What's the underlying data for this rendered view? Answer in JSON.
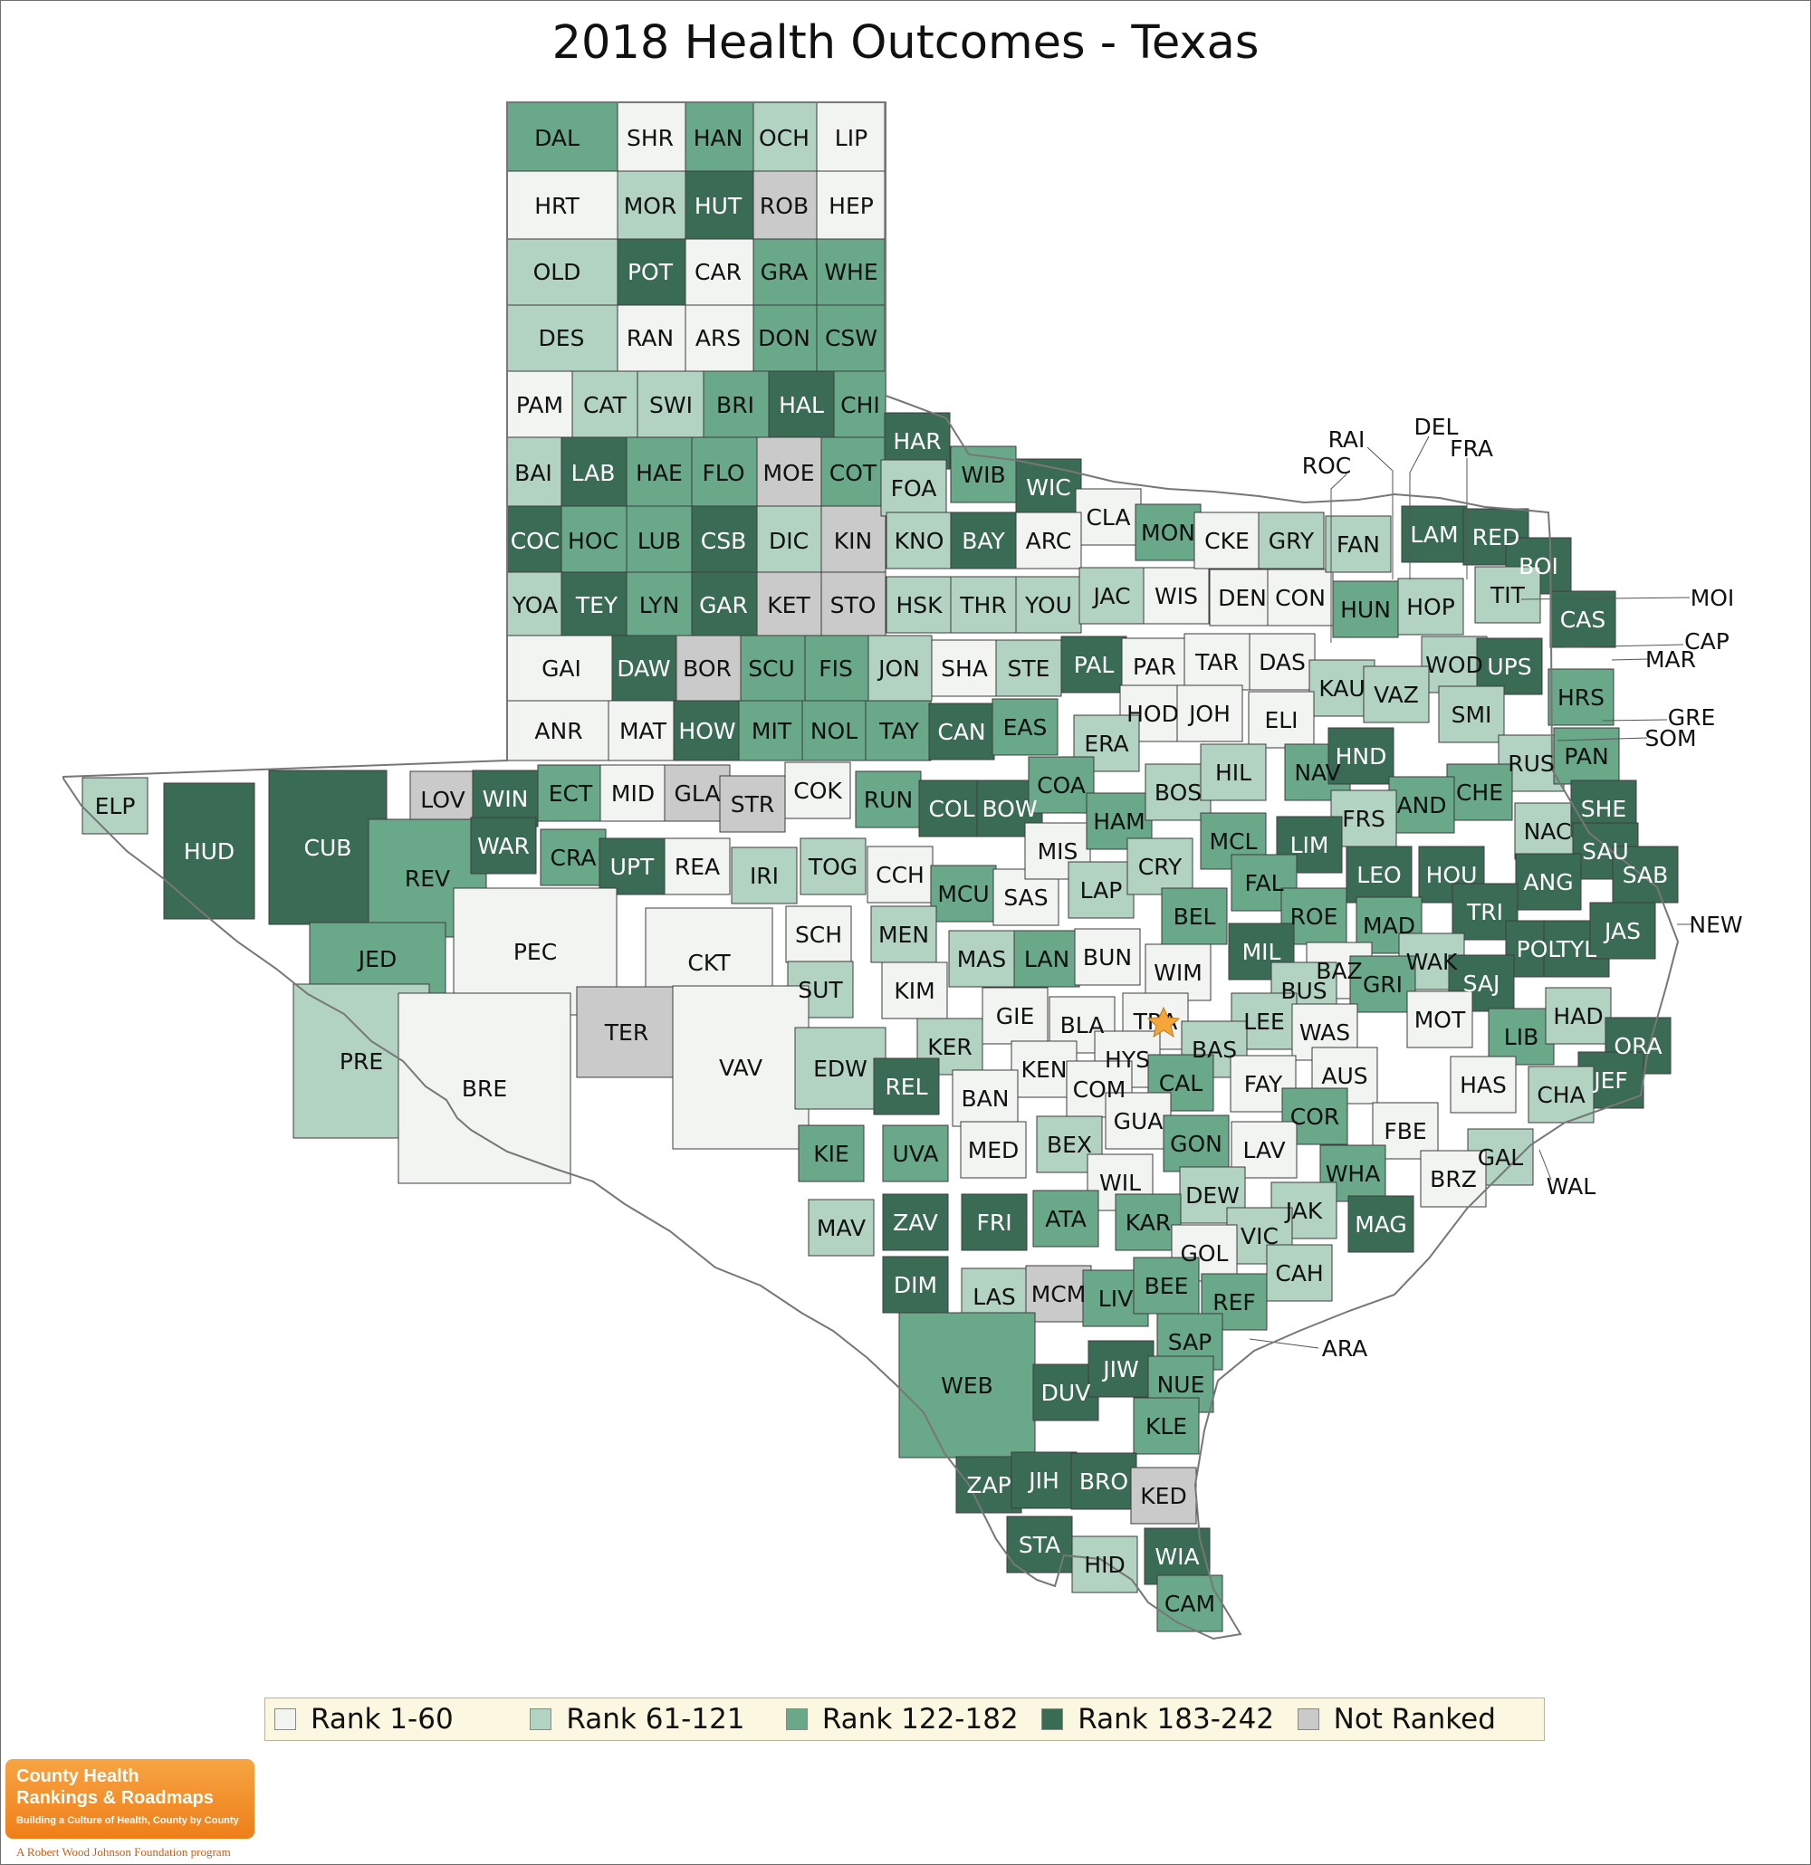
{
  "title": "2018 Health Outcomes - Texas",
  "colors": {
    "rank_1_60": "#f1f4f1",
    "rank_61_121": "#b2d3c1",
    "rank_122_182": "#6aa88a",
    "rank_183_242": "#3a6b55",
    "not_ranked": "#cacaca",
    "border": "#3d3d3d",
    "outline": "#777777",
    "capital_star": "#f4a63b"
  },
  "legend": [
    {
      "label": "Rank 1-60",
      "color": "#f1f4f1"
    },
    {
      "label": "Rank 61-121",
      "color": "#b2d3c1"
    },
    {
      "label": "Rank 122-182",
      "color": "#6aa88a"
    },
    {
      "label": "Rank 183-242",
      "color": "#3a6b55"
    },
    {
      "label": "Not Ranked",
      "color": "#cacaca"
    }
  ],
  "branding": {
    "line1": "County Health",
    "line2": "Rankings & Roadmaps",
    "tagline": "Building a Culture of Health, County by County",
    "foundation": "A Robert Wood Johnson Foundation program"
  },
  "capital": {
    "county": "TRA",
    "icon": "star-icon"
  },
  "counties": [
    {
      "code": "DAL",
      "tier": "r3"
    },
    {
      "code": "SHR",
      "tier": "r1"
    },
    {
      "code": "HAN",
      "tier": "r3"
    },
    {
      "code": "OCH",
      "tier": "r2"
    },
    {
      "code": "LIP",
      "tier": "r1"
    },
    {
      "code": "HRT",
      "tier": "r1"
    },
    {
      "code": "MOR",
      "tier": "r2"
    },
    {
      "code": "HUT",
      "tier": "r4"
    },
    {
      "code": "ROB",
      "tier": "nr"
    },
    {
      "code": "HEP",
      "tier": "r1"
    },
    {
      "code": "OLD",
      "tier": "r2"
    },
    {
      "code": "POT",
      "tier": "r4"
    },
    {
      "code": "CAR",
      "tier": "r1"
    },
    {
      "code": "GRA",
      "tier": "r3"
    },
    {
      "code": "WHE",
      "tier": "r3"
    },
    {
      "code": "DES",
      "tier": "r2"
    },
    {
      "code": "RAN",
      "tier": "r1"
    },
    {
      "code": "ARS",
      "tier": "r1"
    },
    {
      "code": "DON",
      "tier": "r3"
    },
    {
      "code": "CSW",
      "tier": "r3"
    },
    {
      "code": "PAM",
      "tier": "r1"
    },
    {
      "code": "CAT",
      "tier": "r2"
    },
    {
      "code": "SWI",
      "tier": "r2"
    },
    {
      "code": "BRI",
      "tier": "r3"
    },
    {
      "code": "HAL",
      "tier": "r4"
    },
    {
      "code": "CHI",
      "tier": "r3"
    },
    {
      "code": "BAI",
      "tier": "r2"
    },
    {
      "code": "LAB",
      "tier": "r4"
    },
    {
      "code": "HAE",
      "tier": "r3"
    },
    {
      "code": "FLO",
      "tier": "r3"
    },
    {
      "code": "MOE",
      "tier": "nr"
    },
    {
      "code": "COT",
      "tier": "r3"
    },
    {
      "code": "COC",
      "tier": "r4"
    },
    {
      "code": "HOC",
      "tier": "r3"
    },
    {
      "code": "LUB",
      "tier": "r3"
    },
    {
      "code": "CSB",
      "tier": "r4"
    },
    {
      "code": "DIC",
      "tier": "r2"
    },
    {
      "code": "KIN",
      "tier": "nr"
    },
    {
      "code": "YOA",
      "tier": "r2"
    },
    {
      "code": "TEY",
      "tier": "r4"
    },
    {
      "code": "LYN",
      "tier": "r3"
    },
    {
      "code": "GAR",
      "tier": "r4"
    },
    {
      "code": "KET",
      "tier": "nr"
    },
    {
      "code": "STO",
      "tier": "nr"
    },
    {
      "code": "GAI",
      "tier": "r1"
    },
    {
      "code": "DAW",
      "tier": "r4"
    },
    {
      "code": "BOR",
      "tier": "nr"
    },
    {
      "code": "SCU",
      "tier": "r3"
    },
    {
      "code": "FIS",
      "tier": "r3"
    },
    {
      "code": "JON",
      "tier": "r2"
    },
    {
      "code": "ANR",
      "tier": "r1"
    },
    {
      "code": "MAT",
      "tier": "r1"
    },
    {
      "code": "HOW",
      "tier": "r4"
    },
    {
      "code": "MIT",
      "tier": "r3"
    },
    {
      "code": "NOL",
      "tier": "r3"
    },
    {
      "code": "TAY",
      "tier": "r3"
    },
    {
      "code": "HAR",
      "tier": "r4"
    },
    {
      "code": "FOA",
      "tier": "r2"
    },
    {
      "code": "WIB",
      "tier": "r3"
    },
    {
      "code": "WIC",
      "tier": "r4"
    },
    {
      "code": "CLA",
      "tier": "r1"
    },
    {
      "code": "KNO",
      "tier": "r2"
    },
    {
      "code": "BAY",
      "tier": "r4"
    },
    {
      "code": "ARC",
      "tier": "r1"
    },
    {
      "code": "HSK",
      "tier": "r2"
    },
    {
      "code": "THR",
      "tier": "r2"
    },
    {
      "code": "YOU",
      "tier": "r2"
    },
    {
      "code": "SHA",
      "tier": "r1"
    },
    {
      "code": "STE",
      "tier": "r2"
    },
    {
      "code": "CAN",
      "tier": "r4"
    },
    {
      "code": "EAS",
      "tier": "r3"
    },
    {
      "code": "JAC",
      "tier": "r2"
    },
    {
      "code": "WIS",
      "tier": "r1"
    },
    {
      "code": "DEN",
      "tier": "r1"
    },
    {
      "code": "CON",
      "tier": "r1"
    },
    {
      "code": "PAL",
      "tier": "r4"
    },
    {
      "code": "PAR",
      "tier": "r1"
    },
    {
      "code": "TAR",
      "tier": "r1"
    },
    {
      "code": "DAS",
      "tier": "r1"
    },
    {
      "code": "MON",
      "tier": "r3"
    },
    {
      "code": "CKE",
      "tier": "r1"
    },
    {
      "code": "GRY",
      "tier": "r2"
    },
    {
      "code": "FAN",
      "tier": "r2"
    },
    {
      "code": "LAM",
      "tier": "r4"
    },
    {
      "code": "RED",
      "tier": "r4"
    },
    {
      "code": "BOI",
      "tier": "r4"
    },
    {
      "code": "CAS",
      "tier": "r4"
    },
    {
      "code": "HUN",
      "tier": "r3"
    },
    {
      "code": "HOP",
      "tier": "r2"
    },
    {
      "code": "TIT",
      "tier": "r2"
    },
    {
      "code": "WOD",
      "tier": "r2"
    },
    {
      "code": "UPS",
      "tier": "r4"
    },
    {
      "code": "KAU",
      "tier": "r2"
    },
    {
      "code": "VAZ",
      "tier": "r2"
    },
    {
      "code": "SMI",
      "tier": "r2"
    },
    {
      "code": "HRS",
      "tier": "r3"
    },
    {
      "code": "HOD",
      "tier": "r1"
    },
    {
      "code": "JOH",
      "tier": "r1"
    },
    {
      "code": "ELI",
      "tier": "r1"
    },
    {
      "code": "ERA",
      "tier": "r2"
    },
    {
      "code": "ELP",
      "tier": "r2"
    },
    {
      "code": "HUD",
      "tier": "r4"
    },
    {
      "code": "CUB",
      "tier": "r4"
    },
    {
      "code": "LOV",
      "tier": "nr"
    },
    {
      "code": "WIN",
      "tier": "r4"
    },
    {
      "code": "ECT",
      "tier": "r3"
    },
    {
      "code": "MID",
      "tier": "r1"
    },
    {
      "code": "GLA",
      "tier": "nr"
    },
    {
      "code": "STR",
      "tier": "nr"
    },
    {
      "code": "COK",
      "tier": "r1"
    },
    {
      "code": "RUN",
      "tier": "r3"
    },
    {
      "code": "COL",
      "tier": "r4"
    },
    {
      "code": "BOW",
      "tier": "r4"
    },
    {
      "code": "COA",
      "tier": "r3"
    },
    {
      "code": "REV",
      "tier": "r3"
    },
    {
      "code": "WAR",
      "tier": "r4"
    },
    {
      "code": "CRA",
      "tier": "r3"
    },
    {
      "code": "UPT",
      "tier": "r4"
    },
    {
      "code": "REA",
      "tier": "r1"
    },
    {
      "code": "IRI",
      "tier": "r2"
    },
    {
      "code": "TOG",
      "tier": "r2"
    },
    {
      "code": "CCH",
      "tier": "r1"
    },
    {
      "code": "MCU",
      "tier": "r3"
    },
    {
      "code": "SAS",
      "tier": "r1"
    },
    {
      "code": "MIS",
      "tier": "r1"
    },
    {
      "code": "HAM",
      "tier": "r3"
    },
    {
      "code": "BOS",
      "tier": "r2"
    },
    {
      "code": "HIL",
      "tier": "r2"
    },
    {
      "code": "NAV",
      "tier": "r3"
    },
    {
      "code": "HND",
      "tier": "r4"
    },
    {
      "code": "RUS",
      "tier": "r2"
    },
    {
      "code": "PAN",
      "tier": "r3"
    },
    {
      "code": "CHE",
      "tier": "r3"
    },
    {
      "code": "AND",
      "tier": "r3"
    },
    {
      "code": "FRS",
      "tier": "r2"
    },
    {
      "code": "NAC",
      "tier": "r2"
    },
    {
      "code": "SHE",
      "tier": "r4"
    },
    {
      "code": "SAU",
      "tier": "r4"
    },
    {
      "code": "SAB",
      "tier": "r4"
    },
    {
      "code": "JED",
      "tier": "r3"
    },
    {
      "code": "PEC",
      "tier": "r1"
    },
    {
      "code": "CKT",
      "tier": "r1"
    },
    {
      "code": "SCH",
      "tier": "r1"
    },
    {
      "code": "MEN",
      "tier": "r2"
    },
    {
      "code": "LAP",
      "tier": "r2"
    },
    {
      "code": "CRY",
      "tier": "r2"
    },
    {
      "code": "MCL",
      "tier": "r3"
    },
    {
      "code": "LIM",
      "tier": "r4"
    },
    {
      "code": "FAL",
      "tier": "r3"
    },
    {
      "code": "LEO",
      "tier": "r4"
    },
    {
      "code": "HOU",
      "tier": "r4"
    },
    {
      "code": "ANG",
      "tier": "r4"
    },
    {
      "code": "TRI",
      "tier": "r4"
    },
    {
      "code": "POL",
      "tier": "r4"
    },
    {
      "code": "TYL",
      "tier": "r4"
    },
    {
      "code": "JAS",
      "tier": "r4"
    },
    {
      "code": "BEL",
      "tier": "r3"
    },
    {
      "code": "ROE",
      "tier": "r3"
    },
    {
      "code": "MAD",
      "tier": "r3"
    },
    {
      "code": "MIL",
      "tier": "r4"
    },
    {
      "code": "WAK",
      "tier": "r2"
    },
    {
      "code": "SAJ",
      "tier": "r4"
    },
    {
      "code": "MAS",
      "tier": "r2"
    },
    {
      "code": "LAN",
      "tier": "r3"
    },
    {
      "code": "BUN",
      "tier": "r1"
    },
    {
      "code": "WIM",
      "tier": "r1"
    },
    {
      "code": "BAZ",
      "tier": "r1"
    },
    {
      "code": "BUS",
      "tier": "r2"
    },
    {
      "code": "GRI",
      "tier": "r3"
    },
    {
      "code": "SUT",
      "tier": "r2"
    },
    {
      "code": "KIM",
      "tier": "r1"
    },
    {
      "code": "TER",
      "tier": "nr"
    },
    {
      "code": "PRE",
      "tier": "r2"
    },
    {
      "code": "BRE",
      "tier": "r1"
    },
    {
      "code": "VAV",
      "tier": "r1"
    },
    {
      "code": "EDW",
      "tier": "r2"
    },
    {
      "code": "GIE",
      "tier": "r1"
    },
    {
      "code": "BLA",
      "tier": "r1"
    },
    {
      "code": "TRA",
      "tier": "r1"
    },
    {
      "code": "LEE",
      "tier": "r2"
    },
    {
      "code": "WAS",
      "tier": "r1"
    },
    {
      "code": "MOT",
      "tier": "r1"
    },
    {
      "code": "LIB",
      "tier": "r3"
    },
    {
      "code": "HAD",
      "tier": "r2"
    },
    {
      "code": "ORA",
      "tier": "r4"
    },
    {
      "code": "KER",
      "tier": "r2"
    },
    {
      "code": "REL",
      "tier": "r4"
    },
    {
      "code": "HYS",
      "tier": "r1"
    },
    {
      "code": "KEN",
      "tier": "r1"
    },
    {
      "code": "BAS",
      "tier": "r2"
    },
    {
      "code": "COM",
      "tier": "r1"
    },
    {
      "code": "CAL",
      "tier": "r3"
    },
    {
      "code": "FAY",
      "tier": "r1"
    },
    {
      "code": "AUS",
      "tier": "r1"
    },
    {
      "code": "HAS",
      "tier": "r1"
    },
    {
      "code": "JEF",
      "tier": "r4"
    },
    {
      "code": "CHA",
      "tier": "r2"
    },
    {
      "code": "BAN",
      "tier": "r1"
    },
    {
      "code": "GUA",
      "tier": "r1"
    },
    {
      "code": "COR",
      "tier": "r3"
    },
    {
      "code": "FBE",
      "tier": "r1"
    },
    {
      "code": "KIE",
      "tier": "r3"
    },
    {
      "code": "UVA",
      "tier": "r3"
    },
    {
      "code": "MED",
      "tier": "r1"
    },
    {
      "code": "BEX",
      "tier": "r2"
    },
    {
      "code": "GON",
      "tier": "r3"
    },
    {
      "code": "LAV",
      "tier": "r1"
    },
    {
      "code": "GAL",
      "tier": "r2"
    },
    {
      "code": "WHA",
      "tier": "r3"
    },
    {
      "code": "BRZ",
      "tier": "r1"
    },
    {
      "code": "WIL",
      "tier": "r1"
    },
    {
      "code": "DEW",
      "tier": "r2"
    },
    {
      "code": "JAK",
      "tier": "r2"
    },
    {
      "code": "MAV",
      "tier": "r2"
    },
    {
      "code": "ZAV",
      "tier": "r4"
    },
    {
      "code": "FRI",
      "tier": "r4"
    },
    {
      "code": "ATA",
      "tier": "r3"
    },
    {
      "code": "KAR",
      "tier": "r3"
    },
    {
      "code": "MAG",
      "tier": "r4"
    },
    {
      "code": "VIC",
      "tier": "r2"
    },
    {
      "code": "GOL",
      "tier": "r1"
    },
    {
      "code": "CAH",
      "tier": "r2"
    },
    {
      "code": "DIM",
      "tier": "r4"
    },
    {
      "code": "LAS",
      "tier": "r2"
    },
    {
      "code": "MCM",
      "tier": "nr"
    },
    {
      "code": "LIV",
      "tier": "r3"
    },
    {
      "code": "BEE",
      "tier": "r3"
    },
    {
      "code": "REF",
      "tier": "r3"
    },
    {
      "code": "SAP",
      "tier": "r3"
    },
    {
      "code": "WEB",
      "tier": "r3"
    },
    {
      "code": "DUV",
      "tier": "r4"
    },
    {
      "code": "JIW",
      "tier": "r4"
    },
    {
      "code": "NUE",
      "tier": "r3"
    },
    {
      "code": "KLE",
      "tier": "r3"
    },
    {
      "code": "ZAP",
      "tier": "r4"
    },
    {
      "code": "JIH",
      "tier": "r4"
    },
    {
      "code": "BRO",
      "tier": "r4"
    },
    {
      "code": "KED",
      "tier": "nr"
    },
    {
      "code": "STA",
      "tier": "r4"
    },
    {
      "code": "HID",
      "tier": "r2"
    },
    {
      "code": "WIA",
      "tier": "r4"
    },
    {
      "code": "CAM",
      "tier": "r3"
    },
    {
      "code": "ARA",
      "tier": "r3"
    }
  ],
  "callouts": [
    {
      "code": "RAI"
    },
    {
      "code": "DEL"
    },
    {
      "code": "FRA"
    },
    {
      "code": "ROC"
    },
    {
      "code": "MOI"
    },
    {
      "code": "CAP"
    },
    {
      "code": "MAR"
    },
    {
      "code": "GRE"
    },
    {
      "code": "SOM"
    },
    {
      "code": "NEW"
    },
    {
      "code": "WAL"
    },
    {
      "code": "ARA"
    }
  ]
}
